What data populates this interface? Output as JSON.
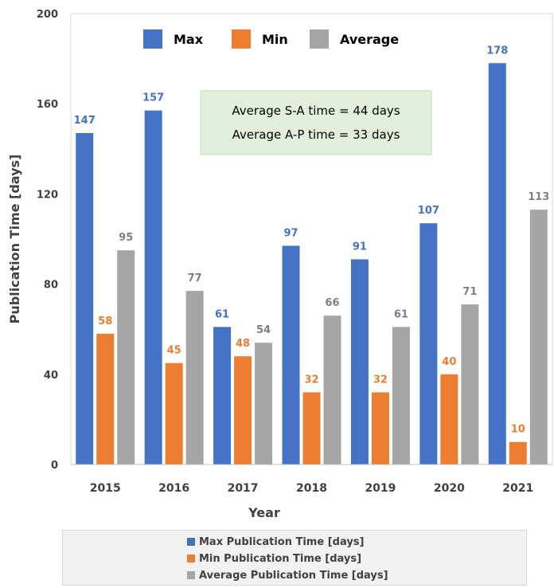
{
  "chart_data": {
    "type": "bar",
    "xlabel": "Year",
    "ylabel": "Publication Time [days]",
    "categories": [
      "2015",
      "2016",
      "2017",
      "2018",
      "2019",
      "2020",
      "2021"
    ],
    "ylim": [
      0,
      200
    ],
    "yticks": [
      0,
      40,
      80,
      120,
      160,
      200
    ],
    "grid": false,
    "series": [
      {
        "name": "Max",
        "color": "#4472c4",
        "values": [
          147,
          157,
          61,
          97,
          91,
          107,
          178
        ]
      },
      {
        "name": "Min",
        "color": "#ed7d31",
        "values": [
          58,
          45,
          48,
          32,
          32,
          40,
          10
        ]
      },
      {
        "name": "Average",
        "color": "#a5a5a5",
        "values": [
          95,
          77,
          54,
          66,
          61,
          71,
          113
        ]
      }
    ],
    "legend_position": "top",
    "annotation": {
      "lines": [
        "Average S-A time = 44 days",
        "Average A-P time = 33 days"
      ],
      "background": "#e2efda"
    }
  },
  "bottom_legend": {
    "items": [
      {
        "label": "Max Publication Time [days]",
        "color": "#4472c4"
      },
      {
        "label": "Min Publication Time [days]",
        "color": "#ed7d31"
      },
      {
        "label": "Average Publication Time [days]",
        "color": "#a5a5a5"
      }
    ]
  }
}
